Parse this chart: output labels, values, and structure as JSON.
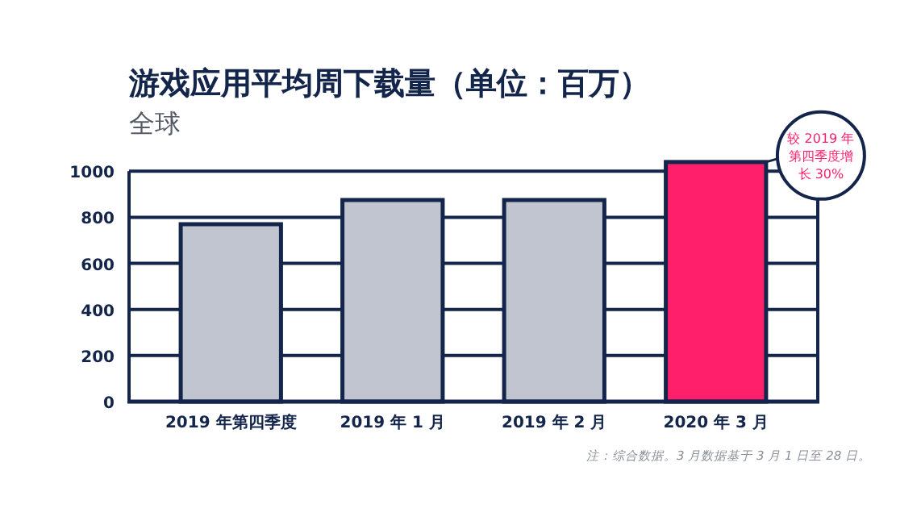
{
  "chart_data": {
    "type": "bar",
    "title": "游戏应用平均周下载量（单位：百万）",
    "subtitle": "全球",
    "categories": [
      "2019 年第四季度",
      "2019 年 1 月",
      "2019 年 2 月",
      "2020 年 3 月"
    ],
    "values": [
      770,
      875,
      875,
      1040
    ],
    "colors": [
      "#c1c5d0",
      "#c1c5d0",
      "#c1c5d0",
      "#ff1f6b"
    ],
    "ylim": [
      0,
      1050
    ],
    "yticks": [
      0,
      200,
      400,
      600,
      800,
      1000
    ],
    "grid": "y",
    "annotations": [
      "较 2019 年第四季度增长 30%",
      "注：综合数据。3 月数据基于 3 月 1 日至 28 日。"
    ]
  }
}
